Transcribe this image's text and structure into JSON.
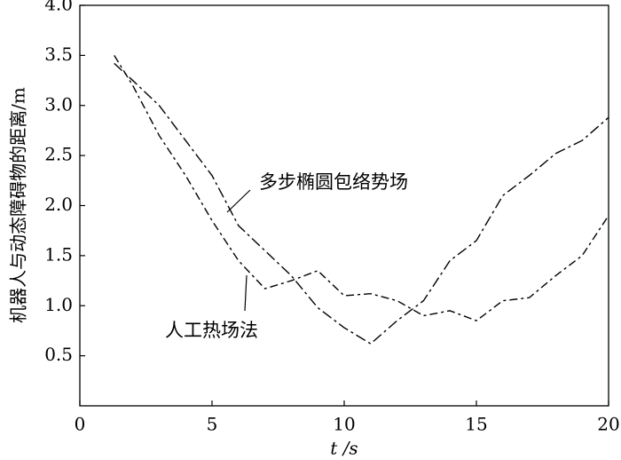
{
  "chart_data": {
    "type": "line",
    "xlabel": "t /s",
    "ylabel": "机器人与动态障碍物的距离/m",
    "x": [
      1.3,
      2,
      3,
      4,
      5,
      6,
      7,
      8,
      9,
      10,
      11,
      12,
      13,
      14,
      15,
      16,
      17,
      18,
      19,
      20
    ],
    "series": [
      {
        "name": "多步椭圆包络势场",
        "color": "#000000",
        "values": [
          3.42,
          3.25,
          3.0,
          2.65,
          2.3,
          1.8,
          1.55,
          1.3,
          0.98,
          0.78,
          0.62,
          0.85,
          1.05,
          1.45,
          1.65,
          2.1,
          2.3,
          2.52,
          2.65,
          2.88
        ]
      },
      {
        "name": "人工热场法",
        "color": "#000000",
        "values": [
          3.5,
          3.2,
          2.7,
          2.3,
          1.85,
          1.45,
          1.17,
          1.25,
          1.35,
          1.1,
          1.12,
          1.05,
          0.9,
          0.95,
          0.85,
          1.05,
          1.08,
          1.3,
          1.5,
          1.9
        ]
      }
    ],
    "xlim": [
      0,
      20
    ],
    "xticks": [
      0,
      5,
      10,
      15,
      20
    ],
    "ylim": [
      0,
      4
    ],
    "yticks": [
      0.5,
      {
        "value": 1,
        "label": "1.0"
      },
      1.5,
      {
        "value": 2,
        "label": "2.0"
      },
      2.5,
      {
        "value": 3,
        "label": "3.0"
      },
      3.5,
      {
        "value": 4,
        "label": "4.0"
      }
    ]
  }
}
